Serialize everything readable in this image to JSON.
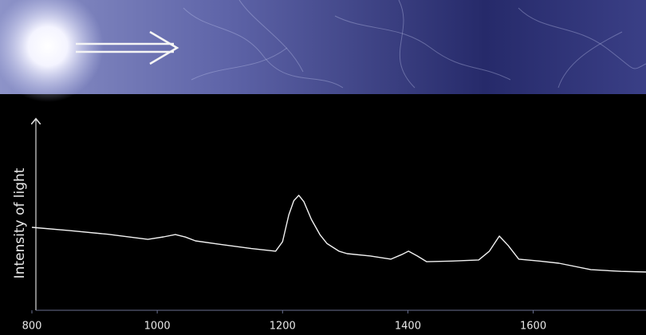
{
  "chart_data": {
    "type": "line",
    "y_label": "Intensity of light",
    "x": [
      800,
      860,
      920,
      985,
      1010,
      1029,
      1045,
      1061,
      1100,
      1150,
      1189,
      1200,
      1210,
      1218,
      1226,
      1234,
      1246,
      1260,
      1271,
      1290,
      1303,
      1340,
      1373,
      1390,
      1401,
      1415,
      1430,
      1470,
      1513,
      1530,
      1546,
      1560,
      1577,
      1610,
      1641,
      1692,
      1740,
      1780
    ],
    "values": [
      43.5,
      41.8,
      39.9,
      37.2,
      38.5,
      39.7,
      38.4,
      36.4,
      34.6,
      32.4,
      31,
      36,
      50,
      57.5,
      60.3,
      57,
      47.7,
      39.5,
      35,
      31,
      29.7,
      28.5,
      26.8,
      29.2,
      31,
      28.5,
      25.5,
      25.8,
      26.4,
      31,
      38.9,
      34,
      26.8,
      25.8,
      24.7,
      21.3,
      20.4,
      20.1
    ],
    "color": "#f2f2f2",
    "xlim": [
      800,
      1780
    ],
    "ylim": [
      0,
      100
    ],
    "xticks": [
      800,
      1000,
      1200,
      1400,
      1600
    ]
  }
}
